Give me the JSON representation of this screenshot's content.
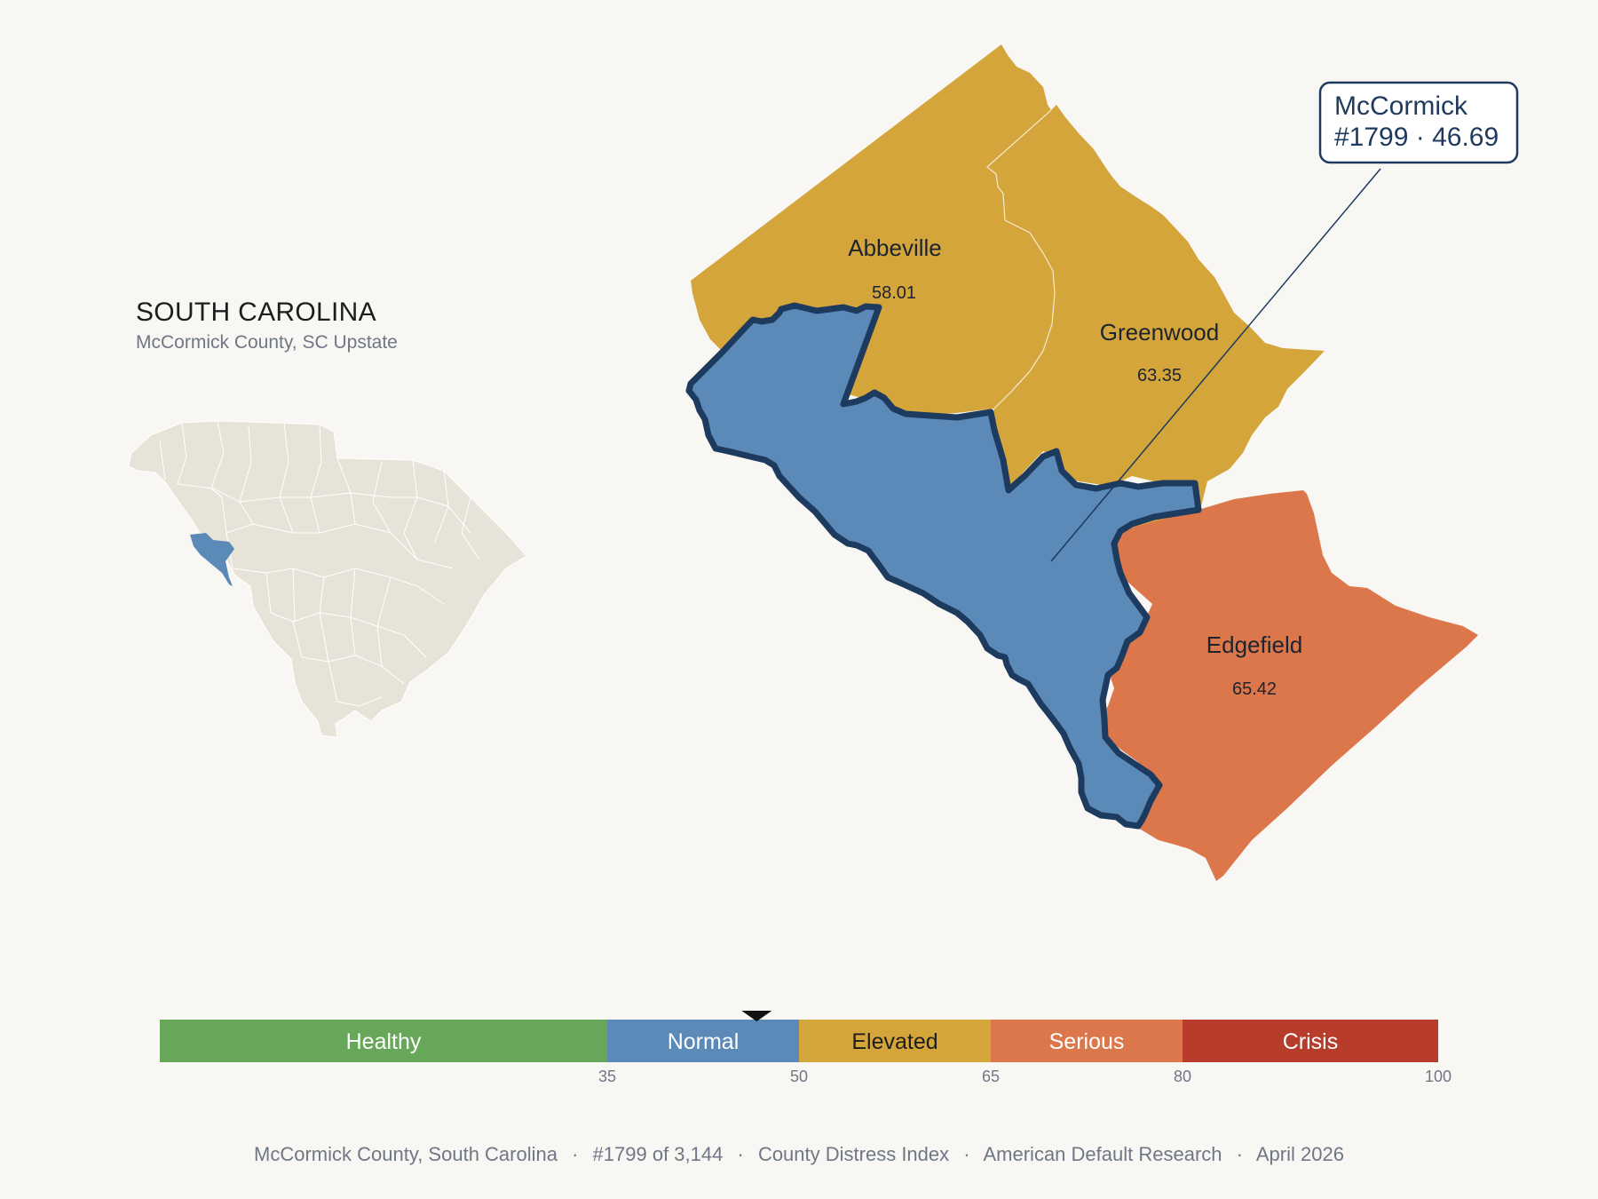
{
  "state": {
    "title": "SOUTH CAROLINA",
    "subtitle": "McCormick County, SC Upstate"
  },
  "counties": {
    "abbeville": {
      "name": "Abbeville",
      "value": "58.01",
      "color": "#d4a53b"
    },
    "greenwood": {
      "name": "Greenwood",
      "value": "63.35",
      "color": "#d4a53b"
    },
    "edgefield": {
      "name": "Edgefield",
      "value": "65.42",
      "color": "#db774a"
    },
    "mccormick": {
      "name": "McCormick",
      "value": "46.69",
      "color": "#5b89b8",
      "outline": "#1d3a5f"
    }
  },
  "callout": {
    "line1": "McCormick",
    "line2": "#1799 · 46.69"
  },
  "scale": {
    "marker_value": 46.69,
    "bands": [
      {
        "label": "Healthy",
        "from": 0,
        "to": 35,
        "color": "#67a75a",
        "text_color": "#ffffff"
      },
      {
        "label": "Normal",
        "from": 35,
        "to": 50,
        "color": "#5b89b8",
        "text_color": "#ffffff"
      },
      {
        "label": "Elevated",
        "from": 50,
        "to": 65,
        "color": "#d4a53b",
        "text_color": "#1d1d1d"
      },
      {
        "label": "Serious",
        "from": 65,
        "to": 80,
        "color": "#db774a",
        "text_color": "#ffffff"
      },
      {
        "label": "Crisis",
        "from": 80,
        "to": 100,
        "color": "#b83c2c",
        "text_color": "#ffffff"
      }
    ],
    "ticks": [
      "35",
      "50",
      "65",
      "80",
      "100"
    ]
  },
  "footer": {
    "county": "McCormick County, South Carolina",
    "rank": "#1799 of 3,144",
    "index": "County Distress Index",
    "source": "American Default Research",
    "date": "April 2026",
    "separator": "·"
  },
  "inset": {
    "fill": "#e8e3d8",
    "highlight": "#5b89b8"
  }
}
